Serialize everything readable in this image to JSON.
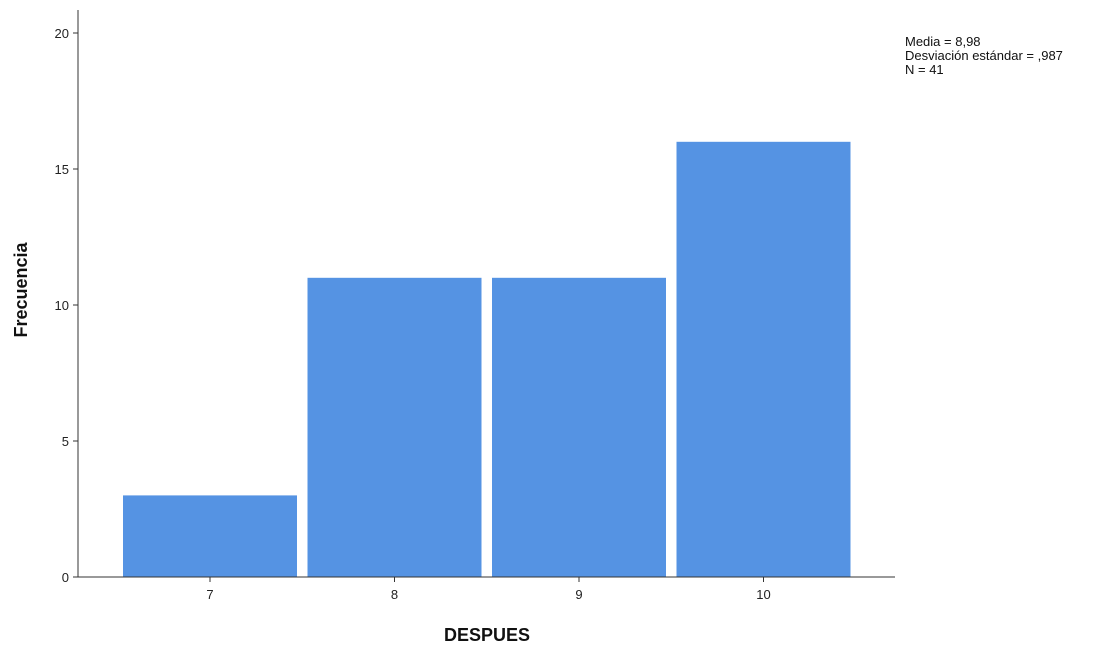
{
  "chart_data": {
    "type": "bar",
    "categories": [
      "7",
      "8",
      "9",
      "10"
    ],
    "values": [
      3,
      11,
      11,
      16
    ],
    "xlabel": "DESPUES",
    "ylabel": "Frecuencia",
    "ylim": [
      0,
      20
    ],
    "yticks": [
      "0",
      "5",
      "10",
      "15",
      "20"
    ],
    "grid": false,
    "bar_color": "#5593e3",
    "legend": "none",
    "stats": {
      "mean": "Media = 8,98",
      "std": "Desviación estándar = ,987",
      "n": "N = 41"
    }
  }
}
